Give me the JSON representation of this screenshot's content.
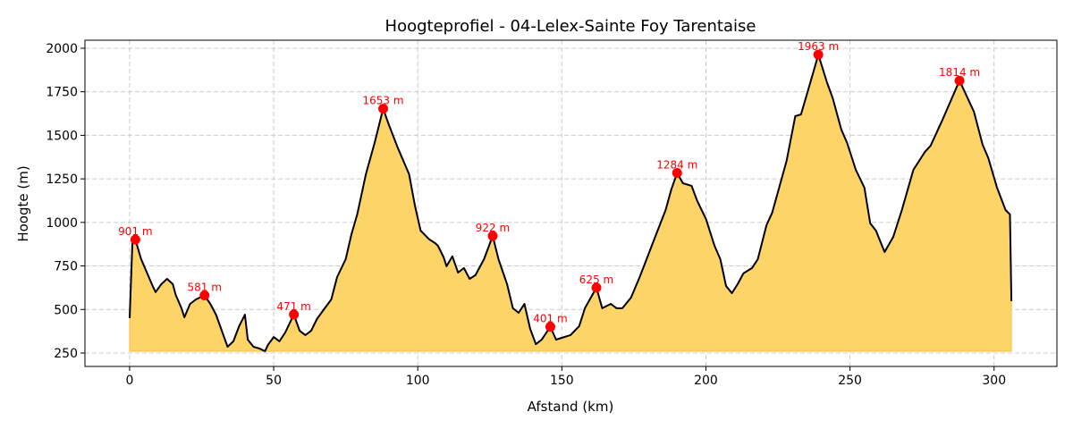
{
  "chart_data": {
    "type": "area",
    "title": "Hoogteprofiel - 04-Lelex-Sainte Foy Tarentaise",
    "xlabel": "Afstand (km)",
    "ylabel": "Hoogte (m)",
    "xlim": [
      -15.5,
      321.8
    ],
    "ylim": [
      173,
      2046
    ],
    "xticks": [
      0,
      50,
      100,
      150,
      200,
      250,
      300
    ],
    "yticks": [
      250,
      500,
      750,
      1000,
      1250,
      1500,
      1750,
      2000
    ],
    "grid": true,
    "fill_base": 260,
    "colors": {
      "line": "#000000",
      "fill": "#fcd468",
      "peak": "#ff0000"
    },
    "x": [
      0,
      1,
      2,
      4,
      6,
      8,
      9,
      11,
      13,
      15,
      16,
      18,
      19,
      21,
      23,
      26,
      28,
      30,
      32,
      34,
      36,
      38,
      40,
      41,
      43,
      45,
      47,
      48,
      50,
      52,
      54,
      57,
      59,
      61,
      63,
      65,
      67,
      70,
      72,
      75,
      77,
      79,
      82,
      85,
      88,
      90,
      93,
      97,
      99,
      101,
      104,
      106,
      107,
      109,
      110,
      112,
      114,
      116,
      118,
      120,
      123,
      126,
      128,
      131,
      133,
      135,
      137,
      139,
      141,
      143,
      146,
      148,
      150,
      153,
      156,
      158,
      162,
      164,
      167,
      169,
      171,
      174,
      177,
      180,
      183,
      186,
      188,
      190,
      192,
      195,
      197,
      200,
      203,
      205,
      207,
      209,
      211,
      213,
      216,
      218,
      221,
      223,
      225,
      228,
      231,
      233,
      236,
      239,
      242,
      244,
      247,
      249,
      252,
      255,
      257,
      259,
      262,
      265,
      268,
      272,
      276,
      278,
      282,
      288,
      293,
      296,
      298,
      301,
      304,
      305.5,
      306
    ],
    "y": [
      450,
      902,
      901,
      790,
      712,
      635,
      600,
      645,
      676,
      645,
      584,
      507,
      455,
      532,
      558,
      581,
      532,
      470,
      378,
      286,
      317,
      404,
      470,
      327,
      286,
      276,
      260,
      296,
      342,
      317,
      368,
      471,
      378,
      353,
      378,
      445,
      491,
      558,
      686,
      789,
      933,
      1046,
      1277,
      1456,
      1653,
      1559,
      1430,
      1277,
      1097,
      953,
      902,
      881,
      866,
      799,
      748,
      805,
      712,
      738,
      676,
      697,
      789,
      922,
      789,
      645,
      507,
      481,
      532,
      389,
      301,
      327,
      401,
      327,
      337,
      353,
      404,
      507,
      625,
      507,
      532,
      507,
      507,
      568,
      686,
      814,
      943,
      1071,
      1190,
      1284,
      1225,
      1210,
      1123,
      1020,
      866,
      789,
      635,
      594,
      645,
      707,
      738,
      789,
      984,
      1056,
      1174,
      1354,
      1610,
      1620,
      1790,
      1963,
      1805,
      1713,
      1533,
      1456,
      1302,
      1200,
      995,
      953,
      830,
      917,
      1071,
      1302,
      1405,
      1441,
      1585,
      1814,
      1636,
      1446,
      1369,
      1200,
      1071,
      1046,
      548
    ],
    "peaks": [
      {
        "x": 2,
        "y": 901,
        "label": "901 m"
      },
      {
        "x": 26,
        "y": 581,
        "label": "581 m"
      },
      {
        "x": 57,
        "y": 471,
        "label": "471 m"
      },
      {
        "x": 88,
        "y": 1653,
        "label": "1653 m"
      },
      {
        "x": 126,
        "y": 922,
        "label": "922 m"
      },
      {
        "x": 146,
        "y": 401,
        "label": "401 m"
      },
      {
        "x": 162,
        "y": 625,
        "label": "625 m"
      },
      {
        "x": 190,
        "y": 1284,
        "label": "1284 m"
      },
      {
        "x": 239,
        "y": 1963,
        "label": "1963 m"
      },
      {
        "x": 288,
        "y": 1814,
        "label": "1814 m"
      }
    ]
  }
}
